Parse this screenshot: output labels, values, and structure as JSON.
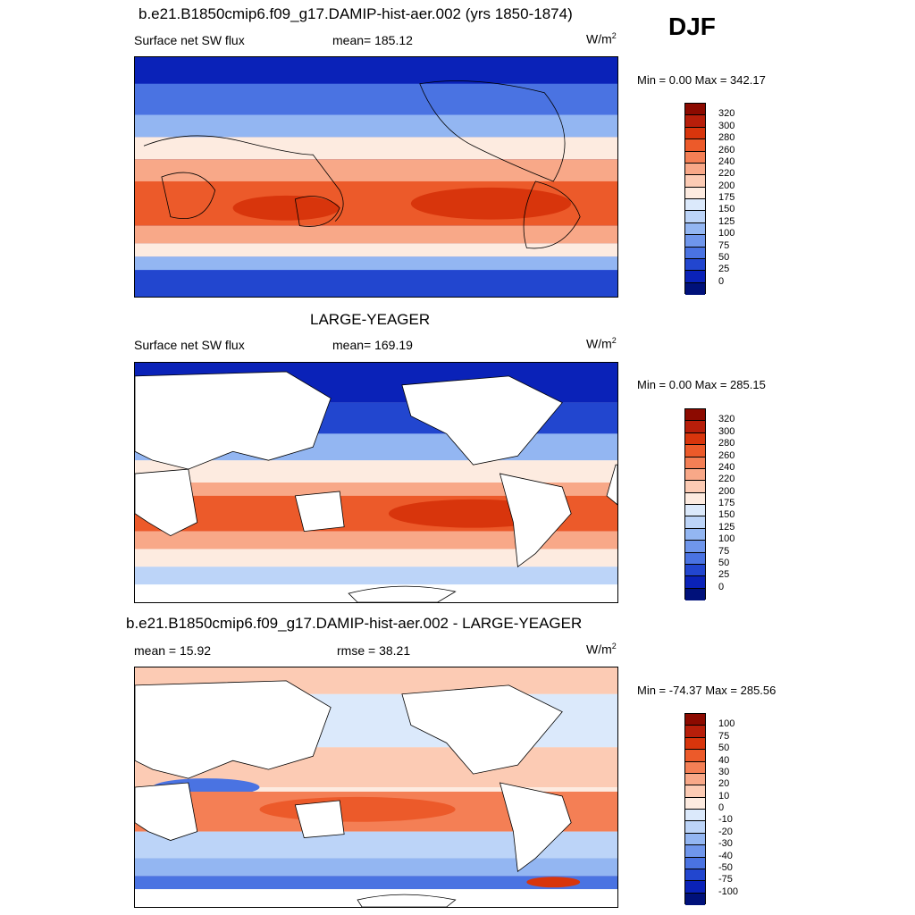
{
  "season_label": "DJF",
  "panels": [
    {
      "title": "b.e21.B1850cmip6.f09_g17.DAMIP-hist-aer.002 (yrs 1850-1874)",
      "left_label": "Surface net SW flux",
      "center_label": "mean= 185.12",
      "units": "W/m",
      "units_sup": "2",
      "minmax": "Min =   0.00 Max = 342.17",
      "colorbar": {
        "ticks": [
          "320",
          "300",
          "280",
          "260",
          "240",
          "220",
          "200",
          "175",
          "150",
          "125",
          "100",
          "75",
          "50",
          "25",
          "0"
        ],
        "colors": [
          "#8c0a00",
          "#b71e0a",
          "#d8350c",
          "#ec5a2a",
          "#f47f55",
          "#f8a888",
          "#fccbb4",
          "#fdebe0",
          "#dbe9fb",
          "#bcd4f8",
          "#93b6f2",
          "#6f96ec",
          "#4a73e2",
          "#2246cf",
          "#0a22b8",
          "#00117a"
        ]
      }
    },
    {
      "title": "LARGE-YEAGER",
      "left_label": "Surface net SW flux",
      "center_label": "mean= 169.19",
      "units": "W/m",
      "units_sup": "2",
      "minmax": "Min =   0.00 Max = 285.15",
      "colorbar": {
        "ticks": [
          "320",
          "300",
          "280",
          "260",
          "240",
          "220",
          "200",
          "175",
          "150",
          "125",
          "100",
          "75",
          "50",
          "25",
          "0"
        ],
        "colors": [
          "#8c0a00",
          "#b71e0a",
          "#d8350c",
          "#ec5a2a",
          "#f47f55",
          "#f8a888",
          "#fccbb4",
          "#fdebe0",
          "#dbe9fb",
          "#bcd4f8",
          "#93b6f2",
          "#6f96ec",
          "#4a73e2",
          "#2246cf",
          "#0a22b8",
          "#00117a"
        ]
      }
    },
    {
      "title": "b.e21.B1850cmip6.f09_g17.DAMIP-hist-aer.002 - LARGE-YEAGER",
      "left_label": "mean =  15.92",
      "center_label": "rmse =  38.21",
      "units": "W/m",
      "units_sup": "2",
      "minmax": "Min = -74.37 Max = 285.56",
      "colorbar": {
        "ticks": [
          "100",
          "75",
          "50",
          "40",
          "30",
          "20",
          "10",
          "0",
          "-10",
          "-20",
          "-30",
          "-40",
          "-50",
          "-75",
          "-100"
        ],
        "colors": [
          "#8c0a00",
          "#b71e0a",
          "#d8350c",
          "#ec5a2a",
          "#f47f55",
          "#f8a888",
          "#fccbb4",
          "#fdebe0",
          "#dbe9fb",
          "#bcd4f8",
          "#93b6f2",
          "#6f96ec",
          "#4a73e2",
          "#2246cf",
          "#0a22b8",
          "#00117a"
        ]
      }
    }
  ]
}
